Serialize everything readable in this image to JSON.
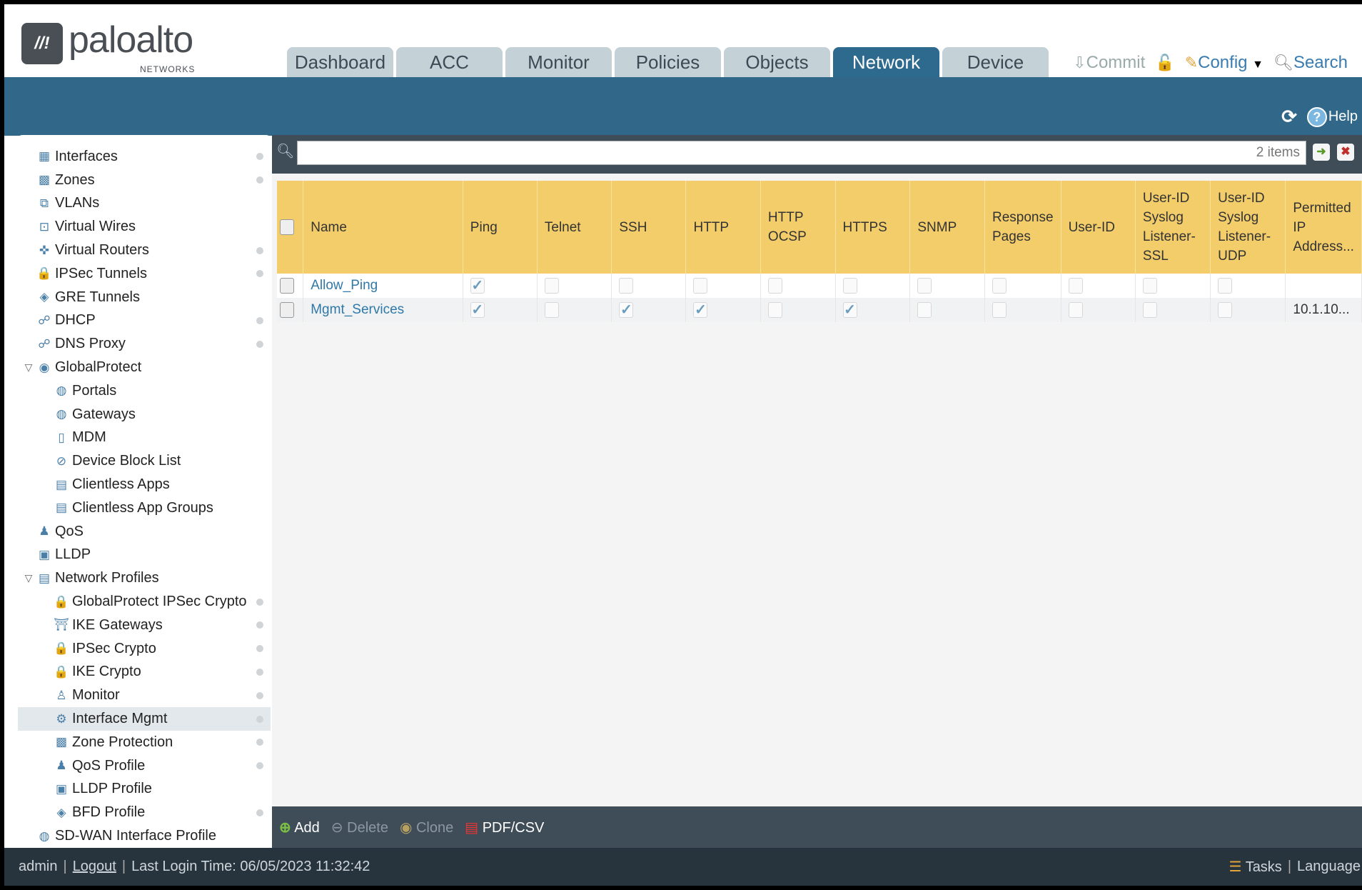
{
  "brand": {
    "name": "paloalto",
    "sub": "NETWORKS"
  },
  "tabs": [
    {
      "label": "Dashboard"
    },
    {
      "label": "ACC"
    },
    {
      "label": "Monitor"
    },
    {
      "label": "Policies"
    },
    {
      "label": "Objects"
    },
    {
      "label": "Network",
      "active": true
    },
    {
      "label": "Device"
    }
  ],
  "toptools": {
    "commit": "Commit",
    "config": "Config",
    "search": "Search"
  },
  "band": {
    "help": "Help"
  },
  "sidebar": {
    "items": [
      {
        "label": "Interfaces",
        "level": 1,
        "icon": "interfaces-icon",
        "glyph": "▦",
        "dot": true
      },
      {
        "label": "Zones",
        "level": 1,
        "icon": "zones-icon",
        "glyph": "▩",
        "dot": true
      },
      {
        "label": "VLANs",
        "level": 1,
        "icon": "vlans-icon",
        "glyph": "⧉",
        "dot": false
      },
      {
        "label": "Virtual Wires",
        "level": 1,
        "icon": "virtual-wires-icon",
        "glyph": "⊡",
        "dot": false
      },
      {
        "label": "Virtual Routers",
        "level": 1,
        "icon": "virtual-routers-icon",
        "glyph": "✜",
        "dot": true
      },
      {
        "label": "IPSec Tunnels",
        "level": 1,
        "icon": "ipsec-tunnels-icon",
        "glyph": "🔒",
        "dot": true
      },
      {
        "label": "GRE Tunnels",
        "level": 1,
        "icon": "gre-tunnels-icon",
        "glyph": "◈",
        "dot": false
      },
      {
        "label": "DHCP",
        "level": 1,
        "icon": "dhcp-icon",
        "glyph": "☍",
        "dot": true
      },
      {
        "label": "DNS Proxy",
        "level": 1,
        "icon": "dns-proxy-icon",
        "glyph": "☍",
        "dot": true
      },
      {
        "label": "GlobalProtect",
        "level": 1,
        "icon": "globalprotect-icon",
        "glyph": "◉",
        "expanded": true,
        "dot": false
      },
      {
        "label": "Portals",
        "level": 2,
        "icon": "portals-icon",
        "glyph": "◍",
        "dot": false
      },
      {
        "label": "Gateways",
        "level": 2,
        "icon": "gateways-icon",
        "glyph": "◍",
        "dot": false
      },
      {
        "label": "MDM",
        "level": 2,
        "icon": "mdm-icon",
        "glyph": "▯",
        "dot": false
      },
      {
        "label": "Device Block List",
        "level": 2,
        "icon": "device-block-list-icon",
        "glyph": "⊘",
        "dot": false
      },
      {
        "label": "Clientless Apps",
        "level": 2,
        "icon": "clientless-apps-icon",
        "glyph": "▤",
        "dot": false
      },
      {
        "label": "Clientless App Groups",
        "level": 2,
        "icon": "clientless-app-groups-icon",
        "glyph": "▤",
        "dot": false
      },
      {
        "label": "QoS",
        "level": 1,
        "icon": "qos-icon",
        "glyph": "♟",
        "dot": false
      },
      {
        "label": "LLDP",
        "level": 1,
        "icon": "lldp-icon",
        "glyph": "▣",
        "dot": false
      },
      {
        "label": "Network Profiles",
        "level": 1,
        "icon": "network-profiles-icon",
        "glyph": "▤",
        "expanded": true,
        "dot": false
      },
      {
        "label": "GlobalProtect IPSec Crypto",
        "level": 2,
        "icon": "lock-icon",
        "glyph": "🔒",
        "dot": true
      },
      {
        "label": "IKE Gateways",
        "level": 2,
        "icon": "ike-gateways-icon",
        "glyph": "⛩",
        "dot": true
      },
      {
        "label": "IPSec Crypto",
        "level": 2,
        "icon": "lock-icon",
        "glyph": "🔒",
        "dot": true
      },
      {
        "label": "IKE Crypto",
        "level": 2,
        "icon": "lock-icon",
        "glyph": "🔒",
        "dot": true
      },
      {
        "label": "Monitor",
        "level": 2,
        "icon": "monitor-icon",
        "glyph": "♙",
        "dot": true
      },
      {
        "label": "Interface Mgmt",
        "level": 2,
        "icon": "interface-mgmt-icon",
        "glyph": "⚙",
        "dot": true,
        "selected": true
      },
      {
        "label": "Zone Protection",
        "level": 2,
        "icon": "zone-protection-icon",
        "glyph": "▩",
        "dot": true
      },
      {
        "label": "QoS Profile",
        "level": 2,
        "icon": "qos-profile-icon",
        "glyph": "♟",
        "dot": true
      },
      {
        "label": "LLDP Profile",
        "level": 2,
        "icon": "lldp-profile-icon",
        "glyph": "▣",
        "dot": false
      },
      {
        "label": "BFD Profile",
        "level": 2,
        "icon": "bfd-profile-icon",
        "glyph": "◈",
        "dot": true
      },
      {
        "label": "SD-WAN Interface Profile",
        "level": 1,
        "icon": "sdwan-profile-icon",
        "glyph": "◍",
        "dot": false
      }
    ]
  },
  "search": {
    "count": "2 items",
    "placeholder": ""
  },
  "table": {
    "columns": [
      "Name",
      "Ping",
      "Telnet",
      "SSH",
      "HTTP",
      "HTTP OCSP",
      "HTTPS",
      "SNMP",
      "Response Pages",
      "User-ID",
      "User-ID Syslog Listener-SSL",
      "User-ID Syslog Listener-UDP",
      "Permitted IP Address..."
    ],
    "rows": [
      {
        "name": "Allow_Ping",
        "checks": [
          true,
          false,
          false,
          false,
          false,
          false,
          false,
          false,
          false,
          false,
          false
        ],
        "permitted": ""
      },
      {
        "name": "Mgmt_Services",
        "checks": [
          true,
          false,
          true,
          true,
          false,
          true,
          false,
          false,
          false,
          false,
          false
        ],
        "permitted": "10.1.10..."
      }
    ]
  },
  "toolbar": {
    "add": "Add",
    "delete": "Delete",
    "clone": "Clone",
    "pdf": "PDF/CSV"
  },
  "footer": {
    "user": "admin",
    "logout": "Logout",
    "last_login": "Last Login Time: 06/05/2023 11:32:42",
    "tasks": "Tasks",
    "language": "Language"
  },
  "colors": {
    "accent": "#31688a",
    "header_row": "#f3cd6a",
    "link": "#2f78a8"
  }
}
